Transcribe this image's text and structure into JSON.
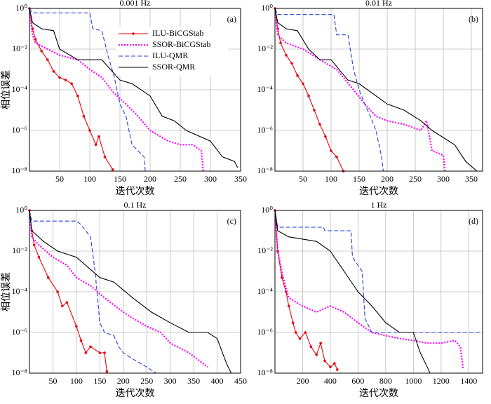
{
  "chart_data": [
    {
      "type": "line",
      "title": "0.001 Hz",
      "panel_label": "(a)",
      "x_label": "迭代次数",
      "y_label": "相位误差",
      "log_y": true,
      "grid": true,
      "legend": "upper center",
      "xlim": [
        0,
        350
      ],
      "xticks": [
        50,
        100,
        150,
        200,
        250,
        300,
        350
      ],
      "ylim": [
        1e-08,
        1
      ],
      "yticks": [
        {
          "value": 1,
          "label": "10⁰"
        },
        {
          "value": 0.01,
          "label": "10⁻²"
        },
        {
          "value": 0.0001,
          "label": "10⁻⁴"
        },
        {
          "value": 1e-06,
          "label": "10⁻⁶"
        },
        {
          "value": 1e-08,
          "label": "10⁻⁸"
        }
      ],
      "series": [
        {
          "name": "ILU-BiCGStab",
          "color": "#e8000b",
          "style": "solid",
          "marker": true,
          "x": [
            0,
            5,
            10,
            20,
            30,
            40,
            50,
            60,
            70,
            80,
            90,
            100,
            110,
            115,
            125,
            138
          ],
          "values": [
            1,
            0.1,
            0.03,
            0.008,
            0.003,
            0.0008,
            0.0004,
            0.0003,
            0.0002,
            5e-05,
            5e-06,
            1e-06,
            2e-07,
            5e-07,
            5e-08,
            1.2e-08
          ]
        },
        {
          "name": "SSOR-BiCGStab",
          "color": "#ff00ff",
          "style": "dotted",
          "marker": false,
          "x": [
            0,
            5,
            10,
            30,
            50,
            80,
            100,
            120,
            140,
            160,
            180,
            200,
            230,
            250,
            270,
            285,
            288
          ],
          "values": [
            1,
            0.05,
            0.02,
            0.01,
            0.005,
            0.003,
            0.001,
            0.0004,
            7e-05,
            2e-05,
            5e-06,
            1e-06,
            3e-07,
            2e-07,
            2e-07,
            1e-07,
            1e-08
          ]
        },
        {
          "name": "ILU-QMR",
          "color": "#2040e0",
          "style": "dashed",
          "marker": false,
          "x": [
            0,
            5,
            100,
            105,
            120,
            130,
            140,
            150,
            160,
            170,
            190,
            192
          ],
          "values": [
            1,
            0.6,
            0.6,
            0.1,
            0.08,
            0.005,
            0.0005,
            2e-05,
            5e-06,
            2e-07,
            5e-08,
            1e-08
          ]
        },
        {
          "name": "SSOR-QMR",
          "color": "#000000",
          "style": "solid",
          "marker": false,
          "x": [
            0,
            5,
            20,
            40,
            50,
            80,
            120,
            150,
            170,
            200,
            220,
            240,
            260,
            300,
            320,
            340,
            345
          ],
          "values": [
            1,
            0.2,
            0.1,
            0.08,
            0.01,
            0.003,
            0.003,
            0.0003,
            0.0002,
            5e-05,
            5e-06,
            3e-06,
            1e-06,
            3e-07,
            5e-08,
            3e-08,
            1.5e-08
          ]
        }
      ]
    },
    {
      "type": "line",
      "title": "0.01 Hz",
      "panel_label": "(b)",
      "x_label": "迭代次数",
      "y_label": "相位误差",
      "log_y": true,
      "grid": true,
      "xlim": [
        0,
        370
      ],
      "xticks": [
        50,
        100,
        150,
        200,
        250,
        300,
        350
      ],
      "ylim": [
        1e-08,
        1
      ],
      "yticks": [
        {
          "value": 1,
          "label": "10⁰"
        },
        {
          "value": 0.01,
          "label": "10⁻²"
        },
        {
          "value": 0.0001,
          "label": "10⁻⁴"
        },
        {
          "value": 1e-06,
          "label": "10⁻⁶"
        },
        {
          "value": 1e-08,
          "label": "10⁻⁸"
        }
      ],
      "series": [
        {
          "color": "#e8000b",
          "style": "solid",
          "marker": true,
          "x": [
            0,
            5,
            10,
            20,
            30,
            40,
            50,
            60,
            70,
            80,
            90,
            100,
            110,
            122
          ],
          "values": [
            1,
            0.1,
            0.02,
            0.005,
            0.002,
            0.0005,
            0.0002,
            5e-05,
            1e-05,
            2e-06,
            5e-07,
            1e-07,
            5e-08,
            1e-08
          ]
        },
        {
          "color": "#ff00ff",
          "style": "dotted",
          "marker": false,
          "x": [
            0,
            5,
            20,
            50,
            80,
            110,
            140,
            160,
            180,
            200,
            230,
            260,
            270,
            280,
            300,
            303
          ],
          "values": [
            1,
            0.05,
            0.02,
            0.01,
            0.003,
            0.001,
            0.0001,
            2e-05,
            5e-06,
            3e-06,
            2e-06,
            1e-06,
            3e-06,
            1e-07,
            6e-08,
            1e-08
          ]
        },
        {
          "color": "#2040e0",
          "style": "dashed",
          "marker": false,
          "x": [
            0,
            5,
            105,
            110,
            130,
            140,
            150,
            160,
            170,
            180,
            190,
            193
          ],
          "values": [
            1,
            0.5,
            0.5,
            0.05,
            0.05,
            0.001,
            0.0001,
            2e-05,
            5e-06,
            1e-06,
            5e-08,
            1e-08
          ]
        },
        {
          "color": "#000000",
          "style": "solid",
          "marker": false,
          "x": [
            0,
            5,
            20,
            40,
            60,
            80,
            100,
            130,
            150,
            180,
            200,
            230,
            260,
            280,
            320,
            340,
            360
          ],
          "values": [
            1,
            0.2,
            0.1,
            0.08,
            0.01,
            0.003,
            0.003,
            0.0003,
            0.0002,
            5e-05,
            2e-05,
            1e-05,
            3e-06,
            1e-06,
            2e-07,
            3e-08,
            1e-08
          ]
        }
      ]
    },
    {
      "type": "line",
      "title": "0.1 Hz",
      "panel_label": "(c)",
      "x_label": "迭代次数",
      "y_label": "相位误差",
      "log_y": true,
      "grid": true,
      "xlim": [
        0,
        450
      ],
      "xticks": [
        50,
        100,
        150,
        200,
        250,
        300,
        350,
        400,
        450
      ],
      "ylim": [
        1e-08,
        1
      ],
      "yticks": [
        {
          "value": 1,
          "label": "10⁰"
        },
        {
          "value": 0.01,
          "label": "10⁻²"
        },
        {
          "value": 0.0001,
          "label": "10⁻⁴"
        },
        {
          "value": 1e-06,
          "label": "10⁻⁶"
        },
        {
          "value": 1e-08,
          "label": "10⁻⁸"
        }
      ],
      "series": [
        {
          "color": "#e8000b",
          "style": "solid",
          "marker": true,
          "x": [
            0,
            5,
            10,
            20,
            40,
            60,
            70,
            80,
            100,
            110,
            120,
            130,
            150,
            160,
            165
          ],
          "values": [
            1,
            0.1,
            0.02,
            0.005,
            0.0005,
            0.0001,
            2e-05,
            3e-05,
            2e-06,
            4e-07,
            1e-07,
            2e-07,
            1e-07,
            1e-07,
            1.2e-08
          ]
        },
        {
          "color": "#ff00ff",
          "style": "dotted",
          "marker": false,
          "x": [
            0,
            5,
            20,
            50,
            80,
            100,
            130,
            160,
            200,
            220,
            250,
            280,
            300,
            340,
            380
          ],
          "values": [
            1,
            0.05,
            0.02,
            0.005,
            0.002,
            0.0005,
            0.0002,
            5e-05,
            1e-05,
            5e-06,
            2e-06,
            1e-06,
            3e-07,
            1e-07,
            2e-08
          ]
        },
        {
          "color": "#2040e0",
          "style": "dashed",
          "marker": false,
          "x": [
            0,
            5,
            100,
            110,
            130,
            140,
            150,
            160,
            180,
            190,
            200,
            220,
            250,
            270
          ],
          "values": [
            1,
            0.3,
            0.3,
            0.2,
            0.05,
            0.001,
            3e-06,
            1e-06,
            7e-07,
            2e-07,
            1e-07,
            5e-08,
            2e-08,
            1e-08
          ]
        },
        {
          "color": "#000000",
          "style": "solid",
          "marker": false,
          "x": [
            0,
            5,
            30,
            60,
            100,
            150,
            180,
            220,
            260,
            300,
            340,
            380,
            400,
            420,
            430
          ],
          "values": [
            1,
            0.1,
            0.03,
            0.01,
            0.005,
            0.0005,
            0.0003,
            5e-05,
            1e-05,
            3e-06,
            1e-06,
            1e-06,
            5e-07,
            3e-08,
            1e-08
          ]
        }
      ]
    },
    {
      "type": "line",
      "title": "1 Hz",
      "panel_label": "(d)",
      "x_label": "迭代次数",
      "y_label": "相位误差",
      "log_y": true,
      "grid": true,
      "xlim": [
        0,
        1500
      ],
      "xticks": [
        200,
        400,
        600,
        800,
        1000,
        1200,
        1400
      ],
      "ylim": [
        1e-08,
        1
      ],
      "yticks": [
        {
          "value": 1,
          "label": "10⁰"
        },
        {
          "value": 0.01,
          "label": "10⁻²"
        },
        {
          "value": 0.0001,
          "label": "10⁻⁴"
        },
        {
          "value": 1e-06,
          "label": "10⁻⁶"
        },
        {
          "value": 1e-08,
          "label": "10⁻⁸"
        }
      ],
      "series": [
        {
          "color": "#e8000b",
          "style": "solid",
          "marker": true,
          "x": [
            0,
            20,
            50,
            80,
            100,
            130,
            150,
            180,
            220,
            260,
            300,
            330,
            360,
            400,
            430,
            450
          ],
          "values": [
            1,
            0.01,
            0.0005,
            0.0001,
            2e-05,
            3e-06,
            1e-06,
            5e-07,
            1e-06,
            2e-07,
            8e-08,
            3e-07,
            4e-08,
            2e-08,
            3e-08,
            1.5e-08
          ]
        },
        {
          "color": "#ff00ff",
          "style": "dotted",
          "marker": false,
          "x": [
            0,
            20,
            60,
            100,
            200,
            300,
            400,
            500,
            600,
            700,
            800,
            900,
            1000,
            1100,
            1200,
            1300,
            1340,
            1360
          ],
          "values": [
            1,
            0.01,
            0.0005,
            5e-05,
            2e-05,
            1e-05,
            2e-05,
            1e-05,
            3e-06,
            1e-06,
            7e-07,
            5e-07,
            4e-07,
            3e-07,
            3e-07,
            4e-07,
            2e-07,
            1.5e-08
          ]
        },
        {
          "color": "#2040e0",
          "style": "dashed",
          "marker": false,
          "x": [
            0,
            20,
            350,
            360,
            550,
            560,
            630,
            650,
            700,
            1500
          ],
          "values": [
            1,
            0.15,
            0.15,
            0.1,
            0.1,
            0.005,
            0.001,
            5e-06,
            1e-06,
            1e-06
          ]
        },
        {
          "color": "#000000",
          "style": "solid",
          "marker": false,
          "x": [
            0,
            20,
            100,
            300,
            400,
            500,
            600,
            700,
            800,
            900,
            1000,
            1050,
            1100,
            1120
          ],
          "values": [
            1,
            0.1,
            0.05,
            0.03,
            0.01,
            0.001,
            0.0001,
            2e-05,
            3e-06,
            1e-06,
            1e-06,
            1e-07,
            2e-08,
            1e-08
          ]
        }
      ]
    }
  ]
}
